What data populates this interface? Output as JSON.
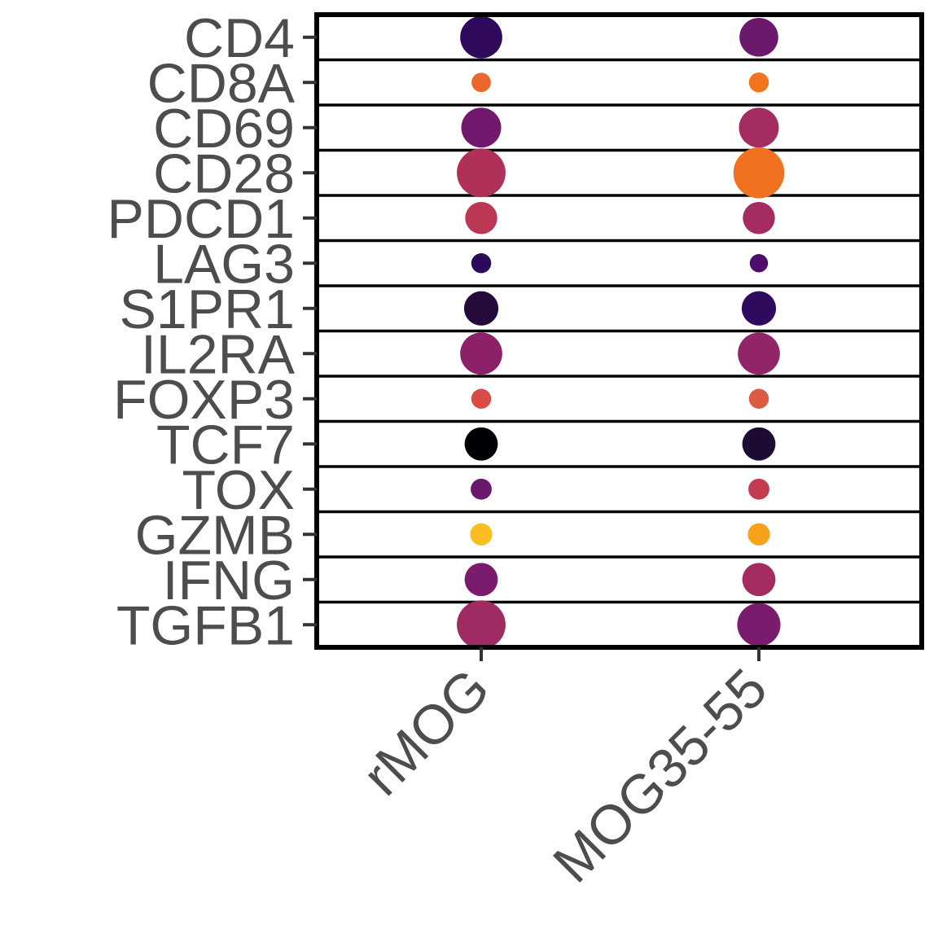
{
  "chart_data": {
    "type": "dot",
    "title": "",
    "xlabel": "",
    "ylabel": "",
    "categories_y": [
      "CD4",
      "CD8A",
      "CD69",
      "CD28",
      "PDCD1",
      "LAG3",
      "S1PR1",
      "IL2RA",
      "FOXP3",
      "TCF7",
      "TOX",
      "GZMB",
      "IFNG",
      "TGFB1"
    ],
    "categories_x": [
      "rMOG",
      "MOG35-55"
    ],
    "grid": "horizontal row separators",
    "legend": "none",
    "points": [
      {
        "gene": "CD4",
        "group": "rMOG",
        "size": 0.76,
        "color": "#2f0a5c"
      },
      {
        "gene": "CD4",
        "group": "MOG35-55",
        "size": 0.7,
        "color": "#6b186d"
      },
      {
        "gene": "CD8A",
        "group": "rMOG",
        "size": 0.35,
        "color": "#ea672e"
      },
      {
        "gene": "CD8A",
        "group": "MOG35-55",
        "size": 0.36,
        "color": "#f2741f"
      },
      {
        "gene": "CD69",
        "group": "rMOG",
        "size": 0.72,
        "color": "#72196e"
      },
      {
        "gene": "CD69",
        "group": "MOG35-55",
        "size": 0.72,
        "color": "#a52c60"
      },
      {
        "gene": "CD28",
        "group": "rMOG",
        "size": 0.88,
        "color": "#b03157"
      },
      {
        "gene": "CD28",
        "group": "MOG35-55",
        "size": 0.92,
        "color": "#f07120"
      },
      {
        "gene": "PDCD1",
        "group": "rMOG",
        "size": 0.58,
        "color": "#bc3754"
      },
      {
        "gene": "PDCD1",
        "group": "MOG35-55",
        "size": 0.58,
        "color": "#a52c60"
      },
      {
        "gene": "LAG3",
        "group": "rMOG",
        "size": 0.36,
        "color": "#2c0a5a"
      },
      {
        "gene": "LAG3",
        "group": "MOG35-55",
        "size": 0.33,
        "color": "#4e0d6b"
      },
      {
        "gene": "S1PR1",
        "group": "rMOG",
        "size": 0.62,
        "color": "#240b3c"
      },
      {
        "gene": "S1PR1",
        "group": "MOG35-55",
        "size": 0.62,
        "color": "#300a5c"
      },
      {
        "gene": "IL2RA",
        "group": "rMOG",
        "size": 0.76,
        "color": "#8c2169"
      },
      {
        "gene": "IL2RA",
        "group": "MOG35-55",
        "size": 0.76,
        "color": "#922568"
      },
      {
        "gene": "FOXP3",
        "group": "rMOG",
        "size": 0.36,
        "color": "#d84c45"
      },
      {
        "gene": "FOXP3",
        "group": "MOG35-55",
        "size": 0.36,
        "color": "#dc5a43"
      },
      {
        "gene": "TCF7",
        "group": "rMOG",
        "size": 0.6,
        "color": "#000004"
      },
      {
        "gene": "TCF7",
        "group": "MOG35-55",
        "size": 0.6,
        "color": "#1e0b33"
      },
      {
        "gene": "TOX",
        "group": "rMOG",
        "size": 0.38,
        "color": "#6b186d"
      },
      {
        "gene": "TOX",
        "group": "MOG35-55",
        "size": 0.38,
        "color": "#c23b50"
      },
      {
        "gene": "GZMB",
        "group": "rMOG",
        "size": 0.4,
        "color": "#fbbe22"
      },
      {
        "gene": "GZMB",
        "group": "MOG35-55",
        "size": 0.4,
        "color": "#f8a11b"
      },
      {
        "gene": "IFNG",
        "group": "rMOG",
        "size": 0.6,
        "color": "#7a1b6d"
      },
      {
        "gene": "IFNG",
        "group": "MOG35-55",
        "size": 0.6,
        "color": "#a52c60"
      },
      {
        "gene": "TGFB1",
        "group": "rMOG",
        "size": 0.88,
        "color": "#a02a62"
      },
      {
        "gene": "TGFB1",
        "group": "MOG35-55",
        "size": 0.78,
        "color": "#7a1b6d"
      }
    ]
  }
}
